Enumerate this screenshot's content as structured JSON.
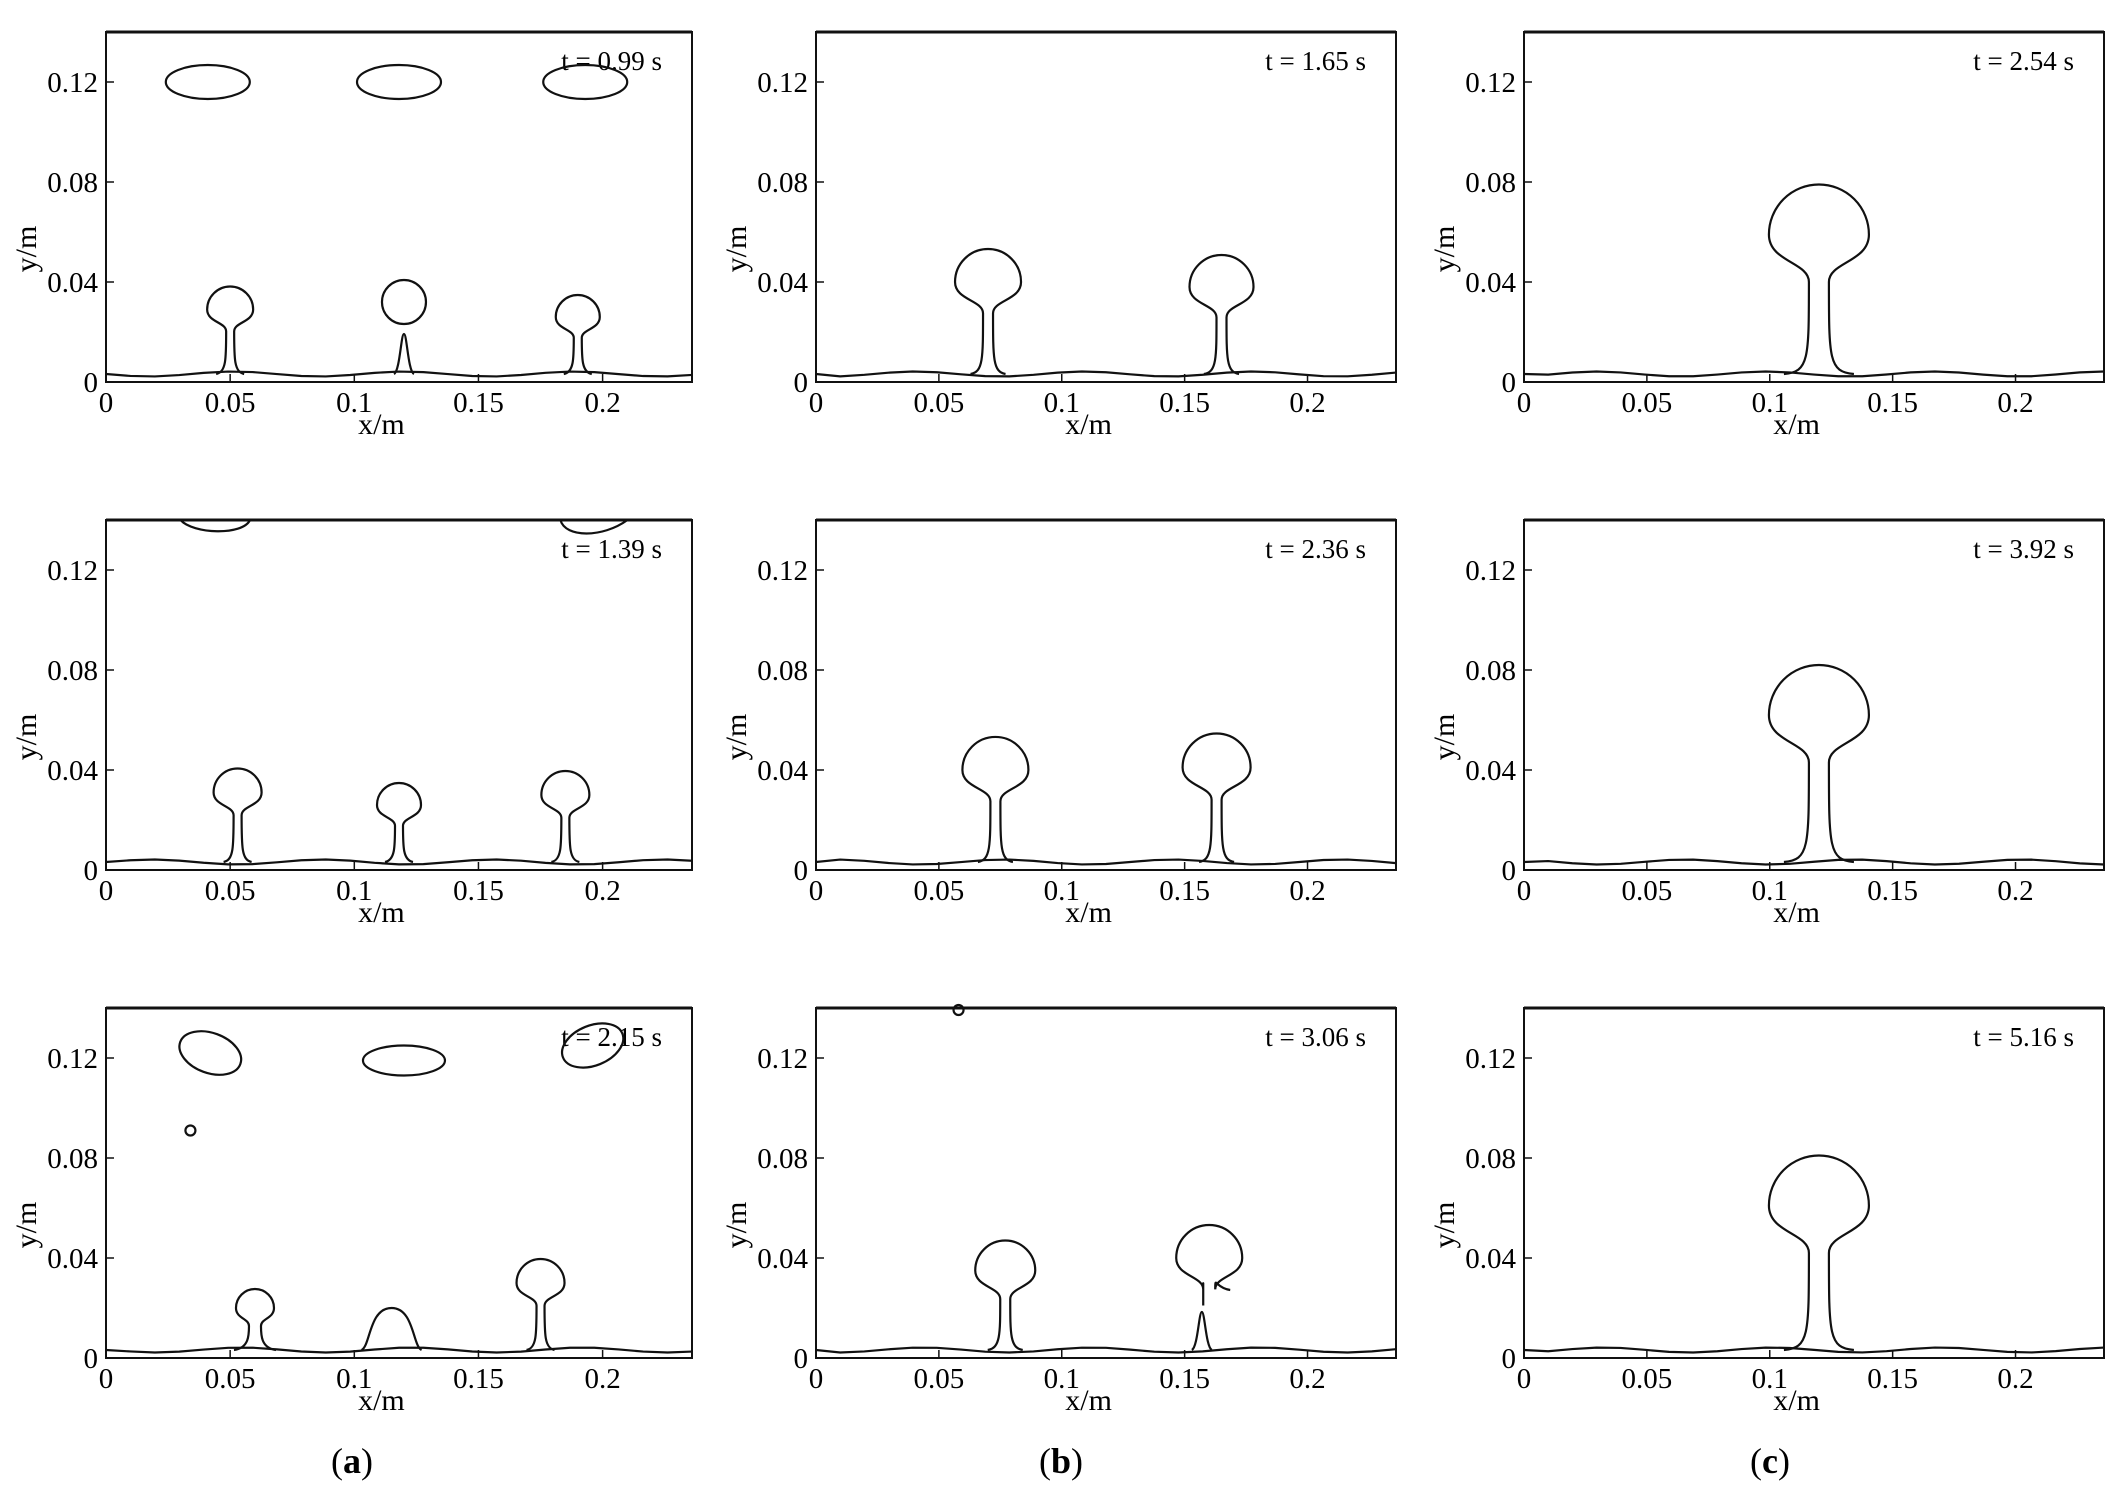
{
  "figure": {
    "columns": [
      {
        "caption_open": "(",
        "caption_letter": "a",
        "caption_close": ")"
      },
      {
        "caption_open": "(",
        "caption_letter": "b",
        "caption_close": ")"
      },
      {
        "caption_open": "(",
        "caption_letter": "c",
        "caption_close": ")"
      }
    ]
  },
  "chart_data": [
    {
      "type": "line",
      "panel": "a",
      "row": 1,
      "annotation": "t = 0.99 s",
      "xlabel": "x/m",
      "ylabel": "y/m",
      "xlim": [
        0,
        0.236
      ],
      "ylim": [
        0,
        0.14
      ],
      "xticks": [
        "0",
        "0.05",
        "0.1",
        "0.15",
        "0.2"
      ],
      "yticks": [
        "0",
        "0.04",
        "0.08",
        "0.12"
      ],
      "features": {
        "rising_bubbles_x": [
          0.05,
          0.12,
          0.19
        ],
        "bubble_head_y": 0.03,
        "detached_bubbles_x": [
          0.04,
          0.12,
          0.195
        ],
        "detached_bubbles_y": 0.12
      }
    },
    {
      "type": "line",
      "panel": "b",
      "row": 1,
      "annotation": "t = 1.65 s",
      "xlabel": "x/m",
      "ylabel": "y/m",
      "xlim": [
        0,
        0.236
      ],
      "ylim": [
        0,
        0.14
      ],
      "xticks": [
        "0",
        "0.05",
        "0.1",
        "0.15",
        "0.2"
      ],
      "yticks": [
        "0",
        "0.04",
        "0.08",
        "0.12"
      ],
      "features": {
        "rising_bubbles_x": [
          0.07,
          0.165
        ],
        "bubble_head_y": 0.04
      }
    },
    {
      "type": "line",
      "panel": "c",
      "row": 1,
      "annotation": "t = 2.54 s",
      "xlabel": "x/m",
      "ylabel": "y/m",
      "xlim": [
        0,
        0.236
      ],
      "ylim": [
        0,
        0.14
      ],
      "xticks": [
        "0",
        "0.05",
        "0.1",
        "0.15",
        "0.2"
      ],
      "yticks": [
        "0",
        "0.04",
        "0.08",
        "0.12"
      ],
      "features": {
        "rising_bubbles_x": [
          0.12
        ],
        "bubble_head_y": 0.06
      }
    },
    {
      "type": "line",
      "panel": "a",
      "row": 2,
      "annotation": "t = 1.39 s",
      "xlabel": "x/m",
      "ylabel": "y/m",
      "xlim": [
        0,
        0.236
      ],
      "ylim": [
        0,
        0.14
      ],
      "xticks": [
        "0",
        "0.05",
        "0.1",
        "0.15",
        "0.2"
      ],
      "yticks": [
        "0",
        "0.04",
        "0.08",
        "0.12"
      ],
      "features": {
        "rising_bubbles_x": [
          0.053,
          0.118,
          0.185
        ],
        "bubble_head_y": 0.029
      }
    },
    {
      "type": "line",
      "panel": "b",
      "row": 2,
      "annotation": "t = 2.36 s",
      "xlabel": "x/m",
      "ylabel": "y/m",
      "xlim": [
        0,
        0.236
      ],
      "ylim": [
        0,
        0.14
      ],
      "xticks": [
        "0",
        "0.05",
        "0.1",
        "0.15",
        "0.2"
      ],
      "yticks": [
        "0",
        "0.04",
        "0.08",
        "0.12"
      ],
      "features": {
        "rising_bubbles_x": [
          0.073,
          0.163
        ],
        "bubble_head_y": 0.04
      }
    },
    {
      "type": "line",
      "panel": "c",
      "row": 2,
      "annotation": "t = 3.92 s",
      "xlabel": "x/m",
      "ylabel": "y/m",
      "xlim": [
        0,
        0.236
      ],
      "ylim": [
        0,
        0.14
      ],
      "xticks": [
        "0",
        "0.05",
        "0.1",
        "0.15",
        "0.2"
      ],
      "yticks": [
        "0",
        "0.04",
        "0.08",
        "0.12"
      ],
      "features": {
        "rising_bubbles_x": [
          0.12
        ],
        "bubble_head_y": 0.062
      }
    },
    {
      "type": "line",
      "panel": "a",
      "row": 3,
      "annotation": "t = 2.15 s",
      "xlabel": "x/m",
      "ylabel": "y/m",
      "xlim": [
        0,
        0.236
      ],
      "ylim": [
        0,
        0.14
      ],
      "xticks": [
        "0",
        "0.05",
        "0.1",
        "0.15",
        "0.2"
      ],
      "yticks": [
        "0",
        "0.04",
        "0.08",
        "0.12"
      ],
      "features": {
        "rising_bubbles_x": [
          0.06,
          0.115,
          0.175
        ],
        "detached_bubbles_x": [
          0.04,
          0.12,
          0.195
        ],
        "detached_bubbles_y": 0.122
      }
    },
    {
      "type": "line",
      "panel": "b",
      "row": 3,
      "annotation": "t = 3.06 s",
      "xlabel": "x/m",
      "ylabel": "y/m",
      "xlim": [
        0,
        0.236
      ],
      "ylim": [
        0,
        0.14
      ],
      "xticks": [
        "0",
        "0.05",
        "0.1",
        "0.15",
        "0.2"
      ],
      "yticks": [
        "0",
        "0.04",
        "0.08",
        "0.12"
      ],
      "features": {
        "rising_bubbles_x": [
          0.077,
          0.16
        ],
        "bubble_head_y": 0.036
      }
    },
    {
      "type": "line",
      "panel": "c",
      "row": 3,
      "annotation": "t = 5.16 s",
      "xlabel": "x/m",
      "ylabel": "y/m",
      "xlim": [
        0,
        0.236
      ],
      "ylim": [
        0,
        0.14
      ],
      "xticks": [
        "0",
        "0.05",
        "0.1",
        "0.15",
        "0.2"
      ],
      "yticks": [
        "0",
        "0.04",
        "0.08",
        "0.12"
      ],
      "features": {
        "rising_bubbles_x": [
          0.12
        ],
        "bubble_head_y": 0.061
      }
    }
  ]
}
